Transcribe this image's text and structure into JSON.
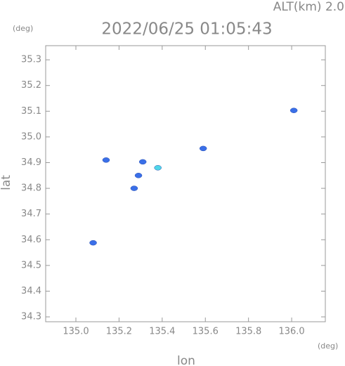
{
  "chart_data": {
    "type": "scatter",
    "title": "2022/06/25 01:05:43",
    "annotation": "ALT(km) 2.0",
    "y_unit": "(deg)",
    "x_unit": "(deg)",
    "xlabel": "lon",
    "ylabel": "lat",
    "x": [
      136.01,
      135.31,
      135.38,
      135.29,
      135.14,
      135.08,
      135.59,
      135.27
    ],
    "values": [
      35.103,
      34.903,
      34.88,
      34.85,
      34.91,
      34.588,
      34.955,
      34.8
    ],
    "colors": [
      "#3a6fe8",
      "#3a6fe8",
      "#4fd6e8",
      "#3a6fe8",
      "#3a6fe8",
      "#3a6fe8",
      "#3a6fe8",
      "#3a6fe8"
    ],
    "xlim": [
      134.86,
      136.156
    ],
    "ylim": [
      34.281,
      35.355
    ],
    "xticks": [
      {
        "value": 135,
        "label": "135.0"
      },
      135.2,
      135.4,
      135.6,
      135.8,
      {
        "value": 136,
        "label": "136.0"
      }
    ],
    "yticks": [
      34.3,
      34.4,
      34.5,
      34.6,
      34.7,
      34.8,
      34.9,
      {
        "value": 35,
        "label": "35.0"
      },
      35.1,
      35.2,
      35.3
    ]
  }
}
